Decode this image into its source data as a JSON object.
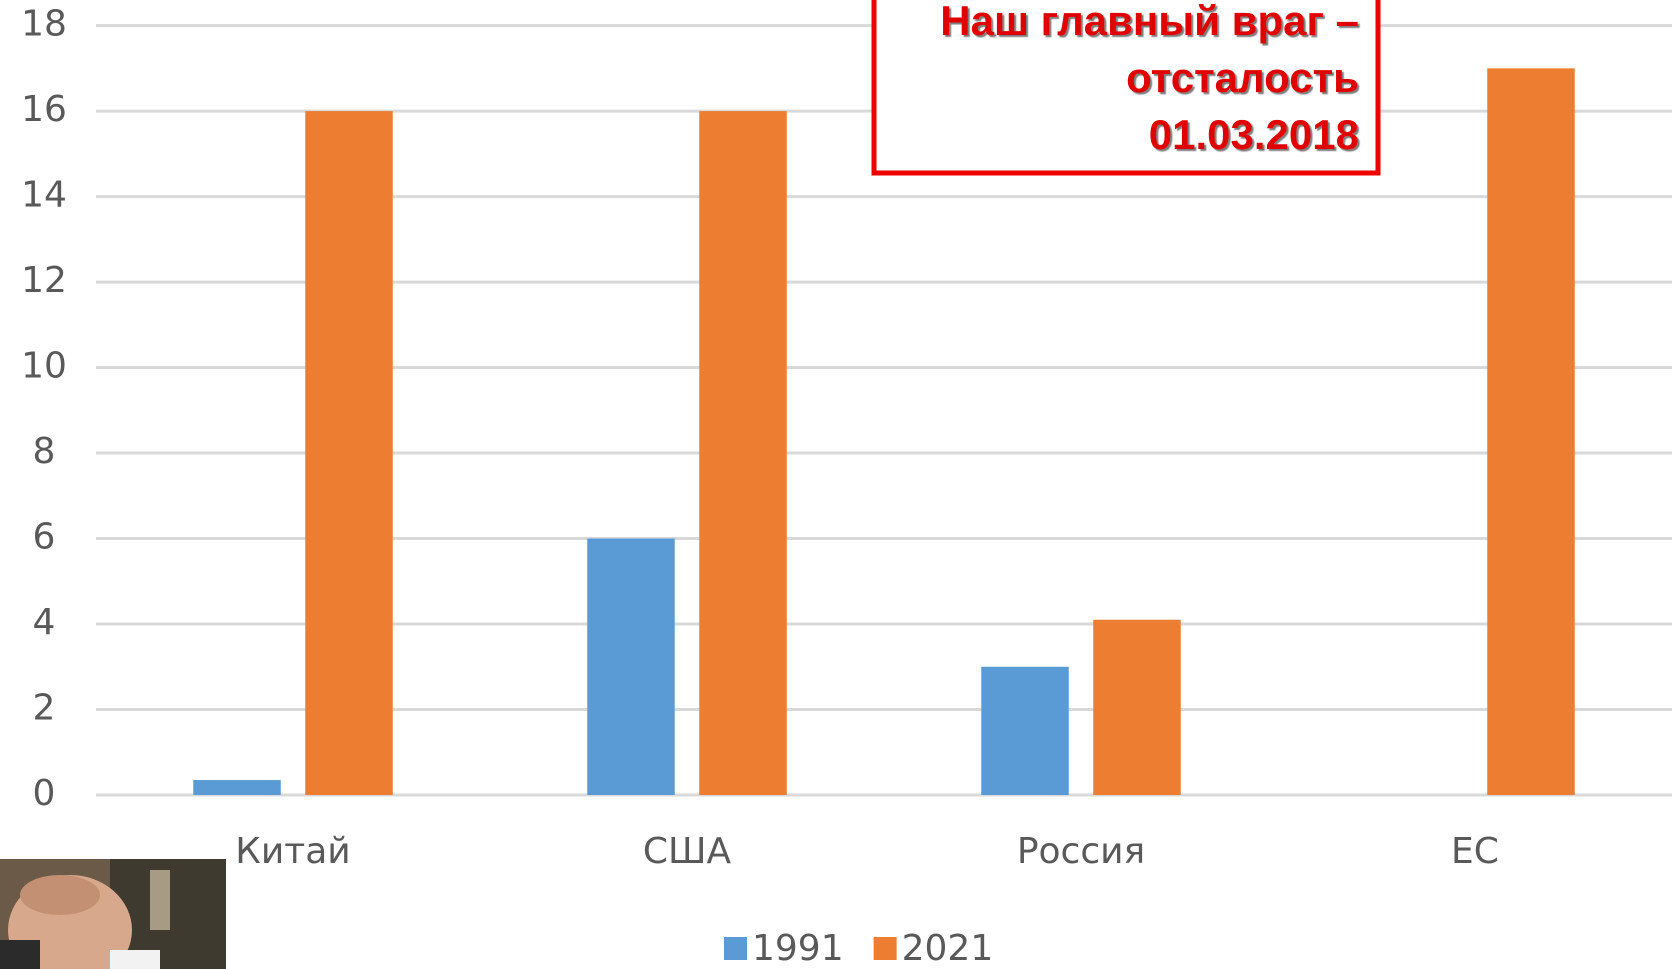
{
  "chart_data": {
    "type": "bar",
    "categories": [
      "Китай",
      "США",
      "Россия",
      "ЕС"
    ],
    "series": [
      {
        "name": "1991",
        "color": "#5b9bd5",
        "values": [
          0.35,
          6,
          3,
          null
        ]
      },
      {
        "name": "2021",
        "color": "#ed7d31",
        "values": [
          16,
          16,
          4.1,
          17
        ]
      }
    ],
    "ylim": [
      0,
      18
    ],
    "yticks": [
      0,
      2,
      4,
      6,
      8,
      10,
      12,
      14,
      16,
      18
    ],
    "grid": true,
    "legend": "bottom",
    "annotation": [
      "Наш главный враг –",
      "отсталость",
      "01.03.2018"
    ]
  }
}
